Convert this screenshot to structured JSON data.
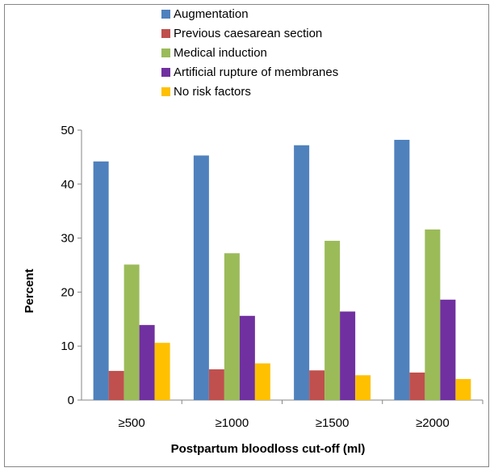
{
  "chart_data": {
    "type": "bar",
    "title": "",
    "xlabel": "Postpartum bloodloss cut-off (ml)",
    "ylabel": "Percent",
    "ylim": [
      0,
      50
    ],
    "yticks": [
      0,
      10,
      20,
      30,
      40,
      50
    ],
    "grid": false,
    "legend_position": "top",
    "categories": [
      "≥500",
      "≥1000",
      "≥1500",
      "≥2000"
    ],
    "series": [
      {
        "name": "Augmentation",
        "color": "#4F81BD",
        "values": [
          44.2,
          45.3,
          47.2,
          48.2
        ]
      },
      {
        "name": "Previous caesarean section",
        "color": "#C0504D",
        "values": [
          5.4,
          5.7,
          5.5,
          5.1
        ]
      },
      {
        "name": "Medical induction",
        "color": "#9BBB59",
        "values": [
          25.1,
          27.2,
          29.5,
          31.6
        ]
      },
      {
        "name": "Artificial rupture of membranes",
        "color": "#7030A0",
        "values": [
          13.9,
          15.6,
          16.4,
          18.6
        ]
      },
      {
        "name": "No risk factors",
        "color": "#FFC000",
        "values": [
          10.6,
          6.8,
          4.6,
          3.9
        ]
      }
    ]
  }
}
